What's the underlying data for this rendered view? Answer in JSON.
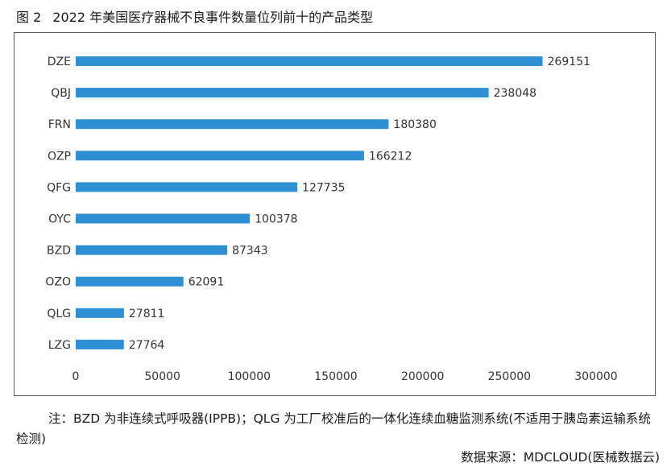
{
  "figure": {
    "number": "图 2",
    "title": "2022 年美国医疗器械不良事件数量位列前十的产品类型"
  },
  "chart_data": {
    "type": "bar",
    "orientation": "horizontal",
    "categories": [
      "DZE",
      "QBJ",
      "FRN",
      "OZP",
      "QFG",
      "OYC",
      "BZD",
      "OZO",
      "QLG",
      "LZG"
    ],
    "values": [
      269151,
      238048,
      180380,
      166212,
      127735,
      100378,
      87343,
      62091,
      27811,
      27764
    ],
    "xlim": [
      0,
      300000
    ],
    "xticks": [
      0,
      50000,
      100000,
      150000,
      200000,
      250000,
      300000
    ],
    "bar_color": "#2f8fd5",
    "grid": false,
    "legend": false
  },
  "note": "注：BZD 为非连续式呼吸器(IPPB)；QLG 为工厂校准后的一体化连续血糖监测系统(不适用于胰岛素运输系统检测)",
  "source": "数据来源：MDCLOUD(医械数据云)"
}
